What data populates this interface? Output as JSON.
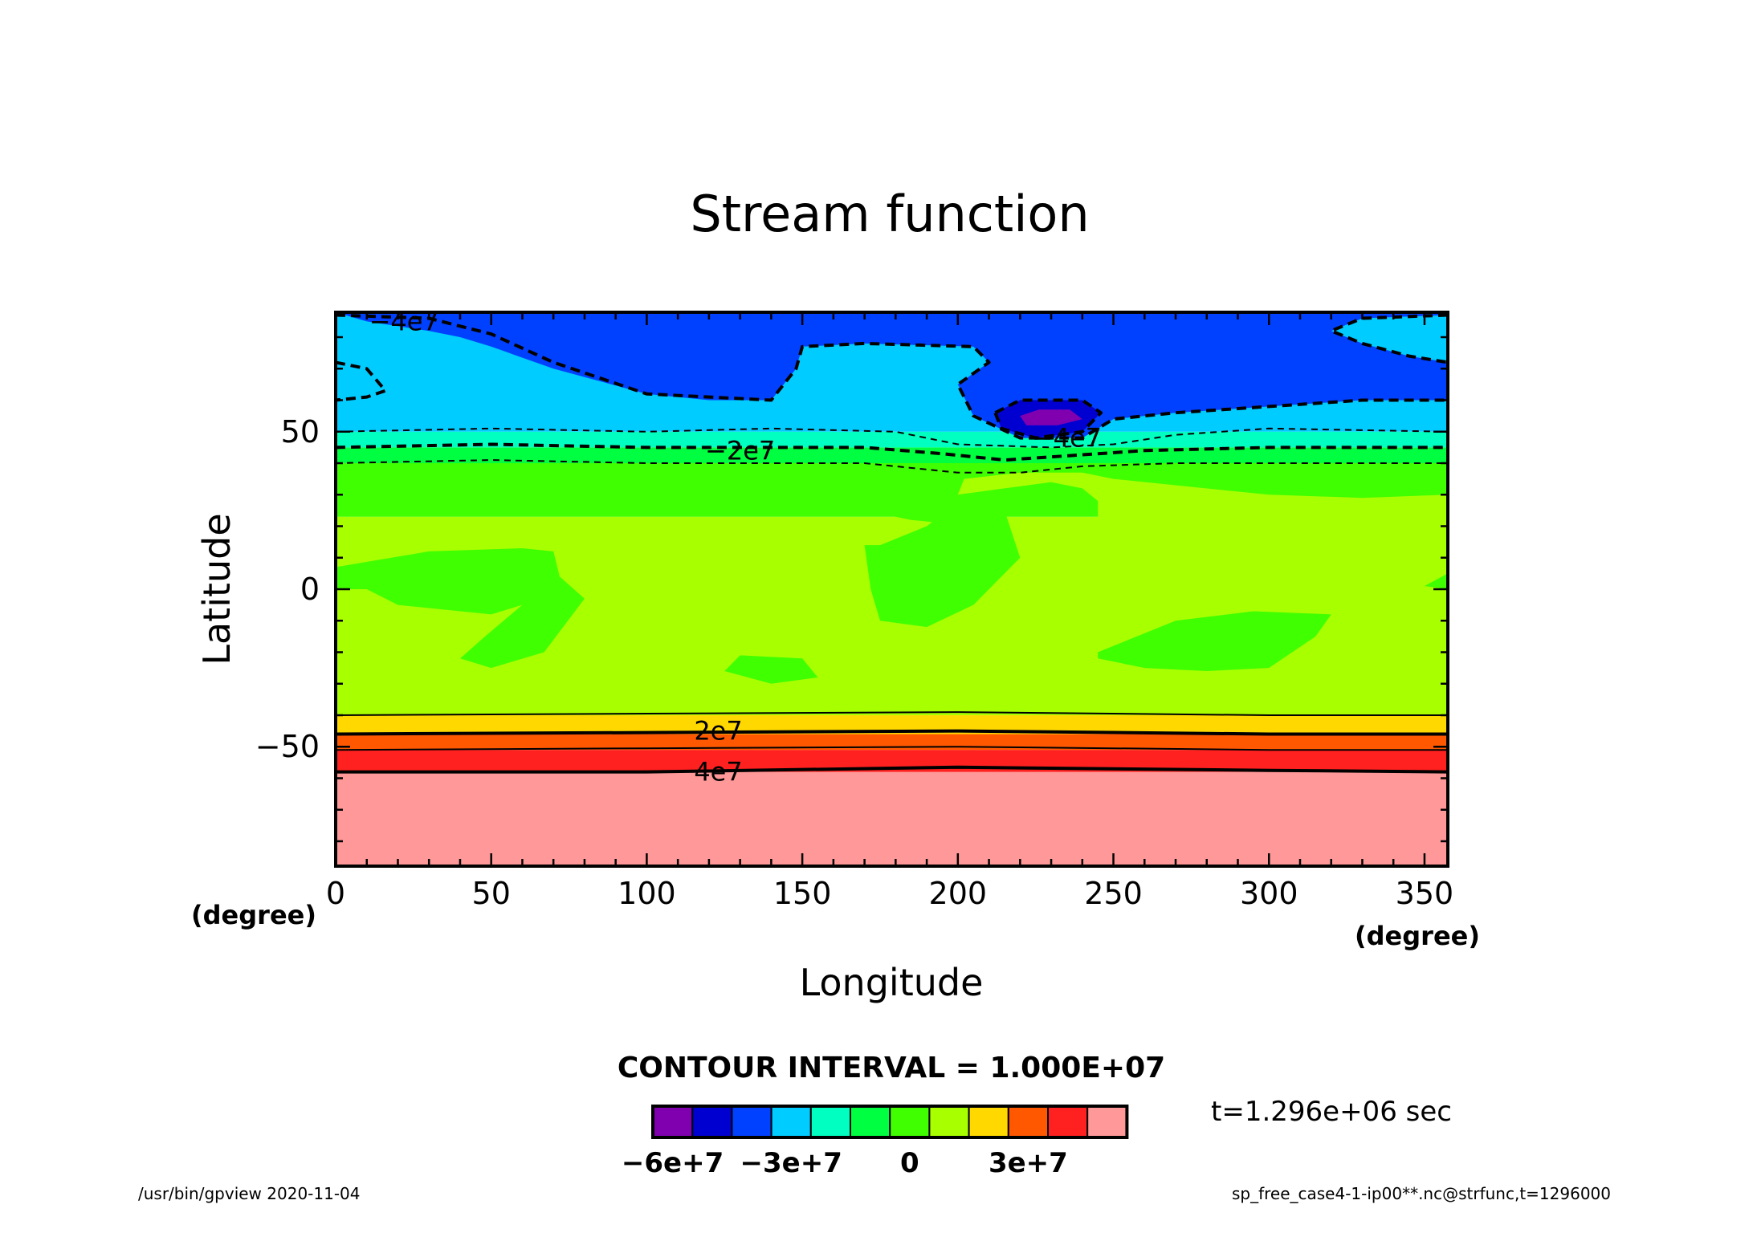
{
  "chart_data": {
    "type": "heatmap",
    "title": "Stream function",
    "xlabel": "Longitude",
    "ylabel": "Latitude",
    "x_unit": "(degree)",
    "y_unit": "",
    "xlim": [
      0,
      357.5
    ],
    "ylim": [
      -87.9,
      87.9
    ],
    "x_ticks": [
      0,
      50,
      100,
      150,
      200,
      250,
      300,
      350
    ],
    "x_tick_labels": [
      "0",
      "50",
      "100",
      "150",
      "200",
      "250",
      "300",
      "350"
    ],
    "y_ticks": [
      -50,
      0,
      50
    ],
    "y_tick_labels": [
      "−50",
      "0",
      "50"
    ],
    "contour_interval_label": "CONTOUR INTERVAL = 1.000E+07",
    "time_label": "t=1.296e+06 sec",
    "contour_labels": [
      {
        "text": "−4e7",
        "lon": 22,
        "lat": 85
      },
      {
        "text": "−2e7",
        "lon": 130,
        "lat": 44
      },
      {
        "text": "−4e7",
        "lon": 235,
        "lat": 48
      },
      {
        "text": "2e7",
        "lon": 123,
        "lat": -45
      },
      {
        "text": "4e7",
        "lon": 123,
        "lat": -58
      }
    ],
    "colorbar": {
      "levels": [
        -60000000,
        -50000000,
        -40000000,
        -30000000,
        -20000000,
        -10000000,
        0,
        10000000,
        20000000,
        30000000,
        40000000,
        50000000
      ],
      "colors": [
        "#8000b0",
        "#0000d0",
        "#0040ff",
        "#00ccff",
        "#00ffc0",
        "#00ff40",
        "#40ff00",
        "#a8ff00",
        "#ffd800",
        "#ff5800",
        "#ff2020",
        "#ff9898"
      ],
      "tick_labels": [
        {
          "text": "−6e+7",
          "index": 0
        },
        {
          "text": "−3e+7",
          "index": 3
        },
        {
          "text": "0",
          "index": 6
        },
        {
          "text": "3e+7",
          "index": 9
        }
      ]
    },
    "zonal_bands": [
      {
        "from_lat": -87.9,
        "to_lat": -58,
        "color": "#ff9898"
      },
      {
        "from_lat": -58,
        "to_lat": -51,
        "color": "#ff2020"
      },
      {
        "from_lat": -51,
        "to_lat": -46,
        "color": "#ff5800"
      },
      {
        "from_lat": -46,
        "to_lat": -40,
        "color": "#ffd800"
      },
      {
        "from_lat": -40,
        "to_lat": 23,
        "color": "#a8ff00"
      },
      {
        "from_lat": 23,
        "to_lat": 40,
        "color": "#40ff00"
      },
      {
        "from_lat": 40,
        "to_lat": 45,
        "color": "#00ff40"
      },
      {
        "from_lat": 45,
        "to_lat": 50,
        "color": "#00ffc0"
      },
      {
        "from_lat": 50,
        "to_lat": 87.9,
        "color": "#00ccff"
      }
    ],
    "regions": [
      {
        "color": "#0040ff",
        "points": [
          [
            0,
            87.9
          ],
          [
            357.5,
            87.9
          ],
          [
            357.5,
            60
          ],
          [
            330,
            60
          ],
          [
            300,
            58
          ],
          [
            270,
            56
          ],
          [
            250,
            54
          ],
          [
            240,
            48
          ],
          [
            220,
            48
          ],
          [
            205,
            55
          ],
          [
            200,
            65
          ],
          [
            210,
            72
          ],
          [
            205,
            77
          ],
          [
            170,
            78
          ],
          [
            150,
            77
          ],
          [
            148,
            70
          ],
          [
            140,
            60
          ],
          [
            120,
            60
          ],
          [
            100,
            62
          ],
          [
            70,
            70
          ],
          [
            50,
            77
          ],
          [
            40,
            80
          ],
          [
            30,
            82
          ],
          [
            10,
            85
          ],
          [
            0,
            87.9
          ]
        ]
      },
      {
        "color": "#00ccff",
        "points": [
          [
            0,
            72
          ],
          [
            10,
            70
          ],
          [
            16,
            63
          ],
          [
            10,
            61
          ],
          [
            0,
            60
          ]
        ]
      },
      {
        "color": "#00ccff",
        "points": [
          [
            357.5,
            87
          ],
          [
            330,
            86
          ],
          [
            320,
            82
          ],
          [
            330,
            78
          ],
          [
            345,
            74
          ],
          [
            357.5,
            72
          ]
        ]
      },
      {
        "color": "#0000d0",
        "points": [
          [
            212,
            56
          ],
          [
            220,
            60
          ],
          [
            240,
            60
          ],
          [
            246,
            56
          ],
          [
            240,
            50
          ],
          [
            225,
            48
          ],
          [
            214,
            51
          ]
        ]
      },
      {
        "color": "#8000b0",
        "points": [
          [
            220,
            55
          ],
          [
            226,
            57
          ],
          [
            236,
            57
          ],
          [
            240,
            54
          ],
          [
            232,
            52
          ],
          [
            222,
            52
          ]
        ]
      },
      {
        "color": "#a8ff00",
        "points": [
          [
            202,
            35
          ],
          [
            220,
            37
          ],
          [
            240,
            37
          ],
          [
            250,
            35
          ],
          [
            270,
            33
          ],
          [
            300,
            30
          ],
          [
            330,
            29
          ],
          [
            357.5,
            30
          ],
          [
            357.5,
            23
          ],
          [
            330,
            20
          ],
          [
            300,
            17
          ],
          [
            290,
            22
          ],
          [
            270,
            17
          ],
          [
            260,
            17
          ],
          [
            245,
            20
          ],
          [
            245,
            28
          ],
          [
            240,
            32
          ],
          [
            230,
            34
          ],
          [
            215,
            32
          ],
          [
            200,
            30
          ]
        ]
      },
      {
        "color": "#40ff00",
        "points": [
          [
            0,
            7
          ],
          [
            30,
            12
          ],
          [
            60,
            13
          ],
          [
            70,
            12
          ],
          [
            72,
            4
          ],
          [
            80,
            -3
          ],
          [
            67,
            -20
          ],
          [
            50,
            -25
          ],
          [
            40,
            -22
          ],
          [
            48,
            -15
          ],
          [
            60,
            -5
          ],
          [
            50,
            -8
          ],
          [
            20,
            -5
          ],
          [
            10,
            0
          ],
          [
            0,
            0
          ]
        ]
      },
      {
        "color": "#40ff00",
        "points": [
          [
            130,
            -21
          ],
          [
            150,
            -22
          ],
          [
            155,
            -28
          ],
          [
            140,
            -30
          ],
          [
            125,
            -26
          ]
        ]
      },
      {
        "color": "#40ff00",
        "points": [
          [
            170,
            25
          ],
          [
            185,
            22
          ],
          [
            195,
            21
          ],
          [
            198,
            26
          ],
          [
            190,
            20
          ],
          [
            175,
            14
          ],
          [
            170,
            14
          ],
          [
            172,
            0
          ],
          [
            175,
            -10
          ],
          [
            190,
            -12
          ],
          [
            205,
            -5
          ],
          [
            220,
            10
          ],
          [
            215,
            25
          ],
          [
            210,
            30
          ],
          [
            190,
            28
          ]
        ]
      },
      {
        "color": "#40ff00",
        "points": [
          [
            245,
            -20
          ],
          [
            270,
            -10
          ],
          [
            295,
            -7
          ],
          [
            320,
            -8
          ],
          [
            315,
            -15
          ],
          [
            300,
            -25
          ],
          [
            280,
            -26
          ],
          [
            260,
            -25
          ],
          [
            245,
            -22
          ]
        ]
      },
      {
        "color": "#40ff00",
        "points": [
          [
            357.5,
            5
          ],
          [
            350,
            1
          ],
          [
            357.5,
            0
          ]
        ]
      }
    ],
    "contour_lines": [
      {
        "style": "dashed",
        "weight": "thick",
        "points": [
          [
            0,
            87
          ],
          [
            30,
            86
          ],
          [
            50,
            81
          ],
          [
            70,
            72
          ],
          [
            100,
            62
          ],
          [
            140,
            60
          ],
          [
            148,
            70
          ],
          [
            150,
            77
          ],
          [
            170,
            78
          ],
          [
            205,
            77
          ],
          [
            210,
            72
          ],
          [
            200,
            65
          ],
          [
            205,
            55
          ],
          [
            220,
            48
          ],
          [
            240,
            48
          ],
          [
            250,
            54
          ],
          [
            270,
            56
          ],
          [
            300,
            58
          ],
          [
            330,
            60
          ],
          [
            357.5,
            60
          ]
        ]
      },
      {
        "style": "dashed",
        "weight": "thick",
        "points": [
          [
            0,
            72
          ],
          [
            10,
            70
          ],
          [
            16,
            63
          ],
          [
            10,
            61
          ],
          [
            0,
            60
          ]
        ]
      },
      {
        "style": "dashed",
        "weight": "thick",
        "points": [
          [
            357.5,
            87
          ],
          [
            330,
            86
          ],
          [
            320,
            82
          ],
          [
            330,
            78
          ],
          [
            345,
            74
          ],
          [
            357.5,
            72
          ]
        ]
      },
      {
        "style": "dashed",
        "weight": "thick",
        "points": [
          [
            212,
            56
          ],
          [
            220,
            60
          ],
          [
            240,
            60
          ],
          [
            246,
            56
          ],
          [
            240,
            50
          ],
          [
            225,
            48
          ],
          [
            214,
            51
          ],
          [
            212,
            56
          ]
        ]
      },
      {
        "style": "dashed",
        "weight": "thin",
        "points": [
          [
            0,
            50
          ],
          [
            50,
            51
          ],
          [
            100,
            50
          ],
          [
            140,
            51
          ],
          [
            180,
            50
          ],
          [
            200,
            46
          ],
          [
            230,
            45
          ],
          [
            250,
            46
          ],
          [
            270,
            49
          ],
          [
            300,
            51
          ],
          [
            357.5,
            50
          ]
        ]
      },
      {
        "style": "dashed",
        "weight": "thick",
        "points": [
          [
            0,
            45
          ],
          [
            50,
            46
          ],
          [
            100,
            45
          ],
          [
            170,
            45
          ],
          [
            195,
            43
          ],
          [
            215,
            41
          ],
          [
            230,
            42
          ],
          [
            260,
            44
          ],
          [
            300,
            45
          ],
          [
            357.5,
            45
          ]
        ]
      },
      {
        "style": "dashed",
        "weight": "thin",
        "points": [
          [
            0,
            40
          ],
          [
            50,
            41
          ],
          [
            100,
            40
          ],
          [
            170,
            40
          ],
          [
            200,
            37
          ],
          [
            220,
            37
          ],
          [
            240,
            39
          ],
          [
            270,
            40
          ],
          [
            300,
            40
          ],
          [
            357.5,
            40
          ]
        ]
      },
      {
        "style": "solid",
        "weight": "thin",
        "points": [
          [
            0,
            -40
          ],
          [
            100,
            -39.5
          ],
          [
            200,
            -39
          ],
          [
            300,
            -40
          ],
          [
            357.5,
            -40
          ]
        ]
      },
      {
        "style": "solid",
        "weight": "thick",
        "points": [
          [
            0,
            -46
          ],
          [
            100,
            -45.5
          ],
          [
            200,
            -45
          ],
          [
            300,
            -46
          ],
          [
            357.5,
            -46
          ]
        ]
      },
      {
        "style": "solid",
        "weight": "thin",
        "points": [
          [
            0,
            -51
          ],
          [
            100,
            -50.5
          ],
          [
            200,
            -50
          ],
          [
            300,
            -51
          ],
          [
            357.5,
            -51
          ]
        ]
      },
      {
        "style": "solid",
        "weight": "thick",
        "points": [
          [
            0,
            -58
          ],
          [
            100,
            -58
          ],
          [
            200,
            -56.5
          ],
          [
            300,
            -57.5
          ],
          [
            357.5,
            -58
          ]
        ]
      }
    ]
  },
  "footer": {
    "left": "/usr/bin/gpview   2020-11-04",
    "right": "sp_free_case4-1-ip00**.nc@strfunc,t=1296000"
  }
}
